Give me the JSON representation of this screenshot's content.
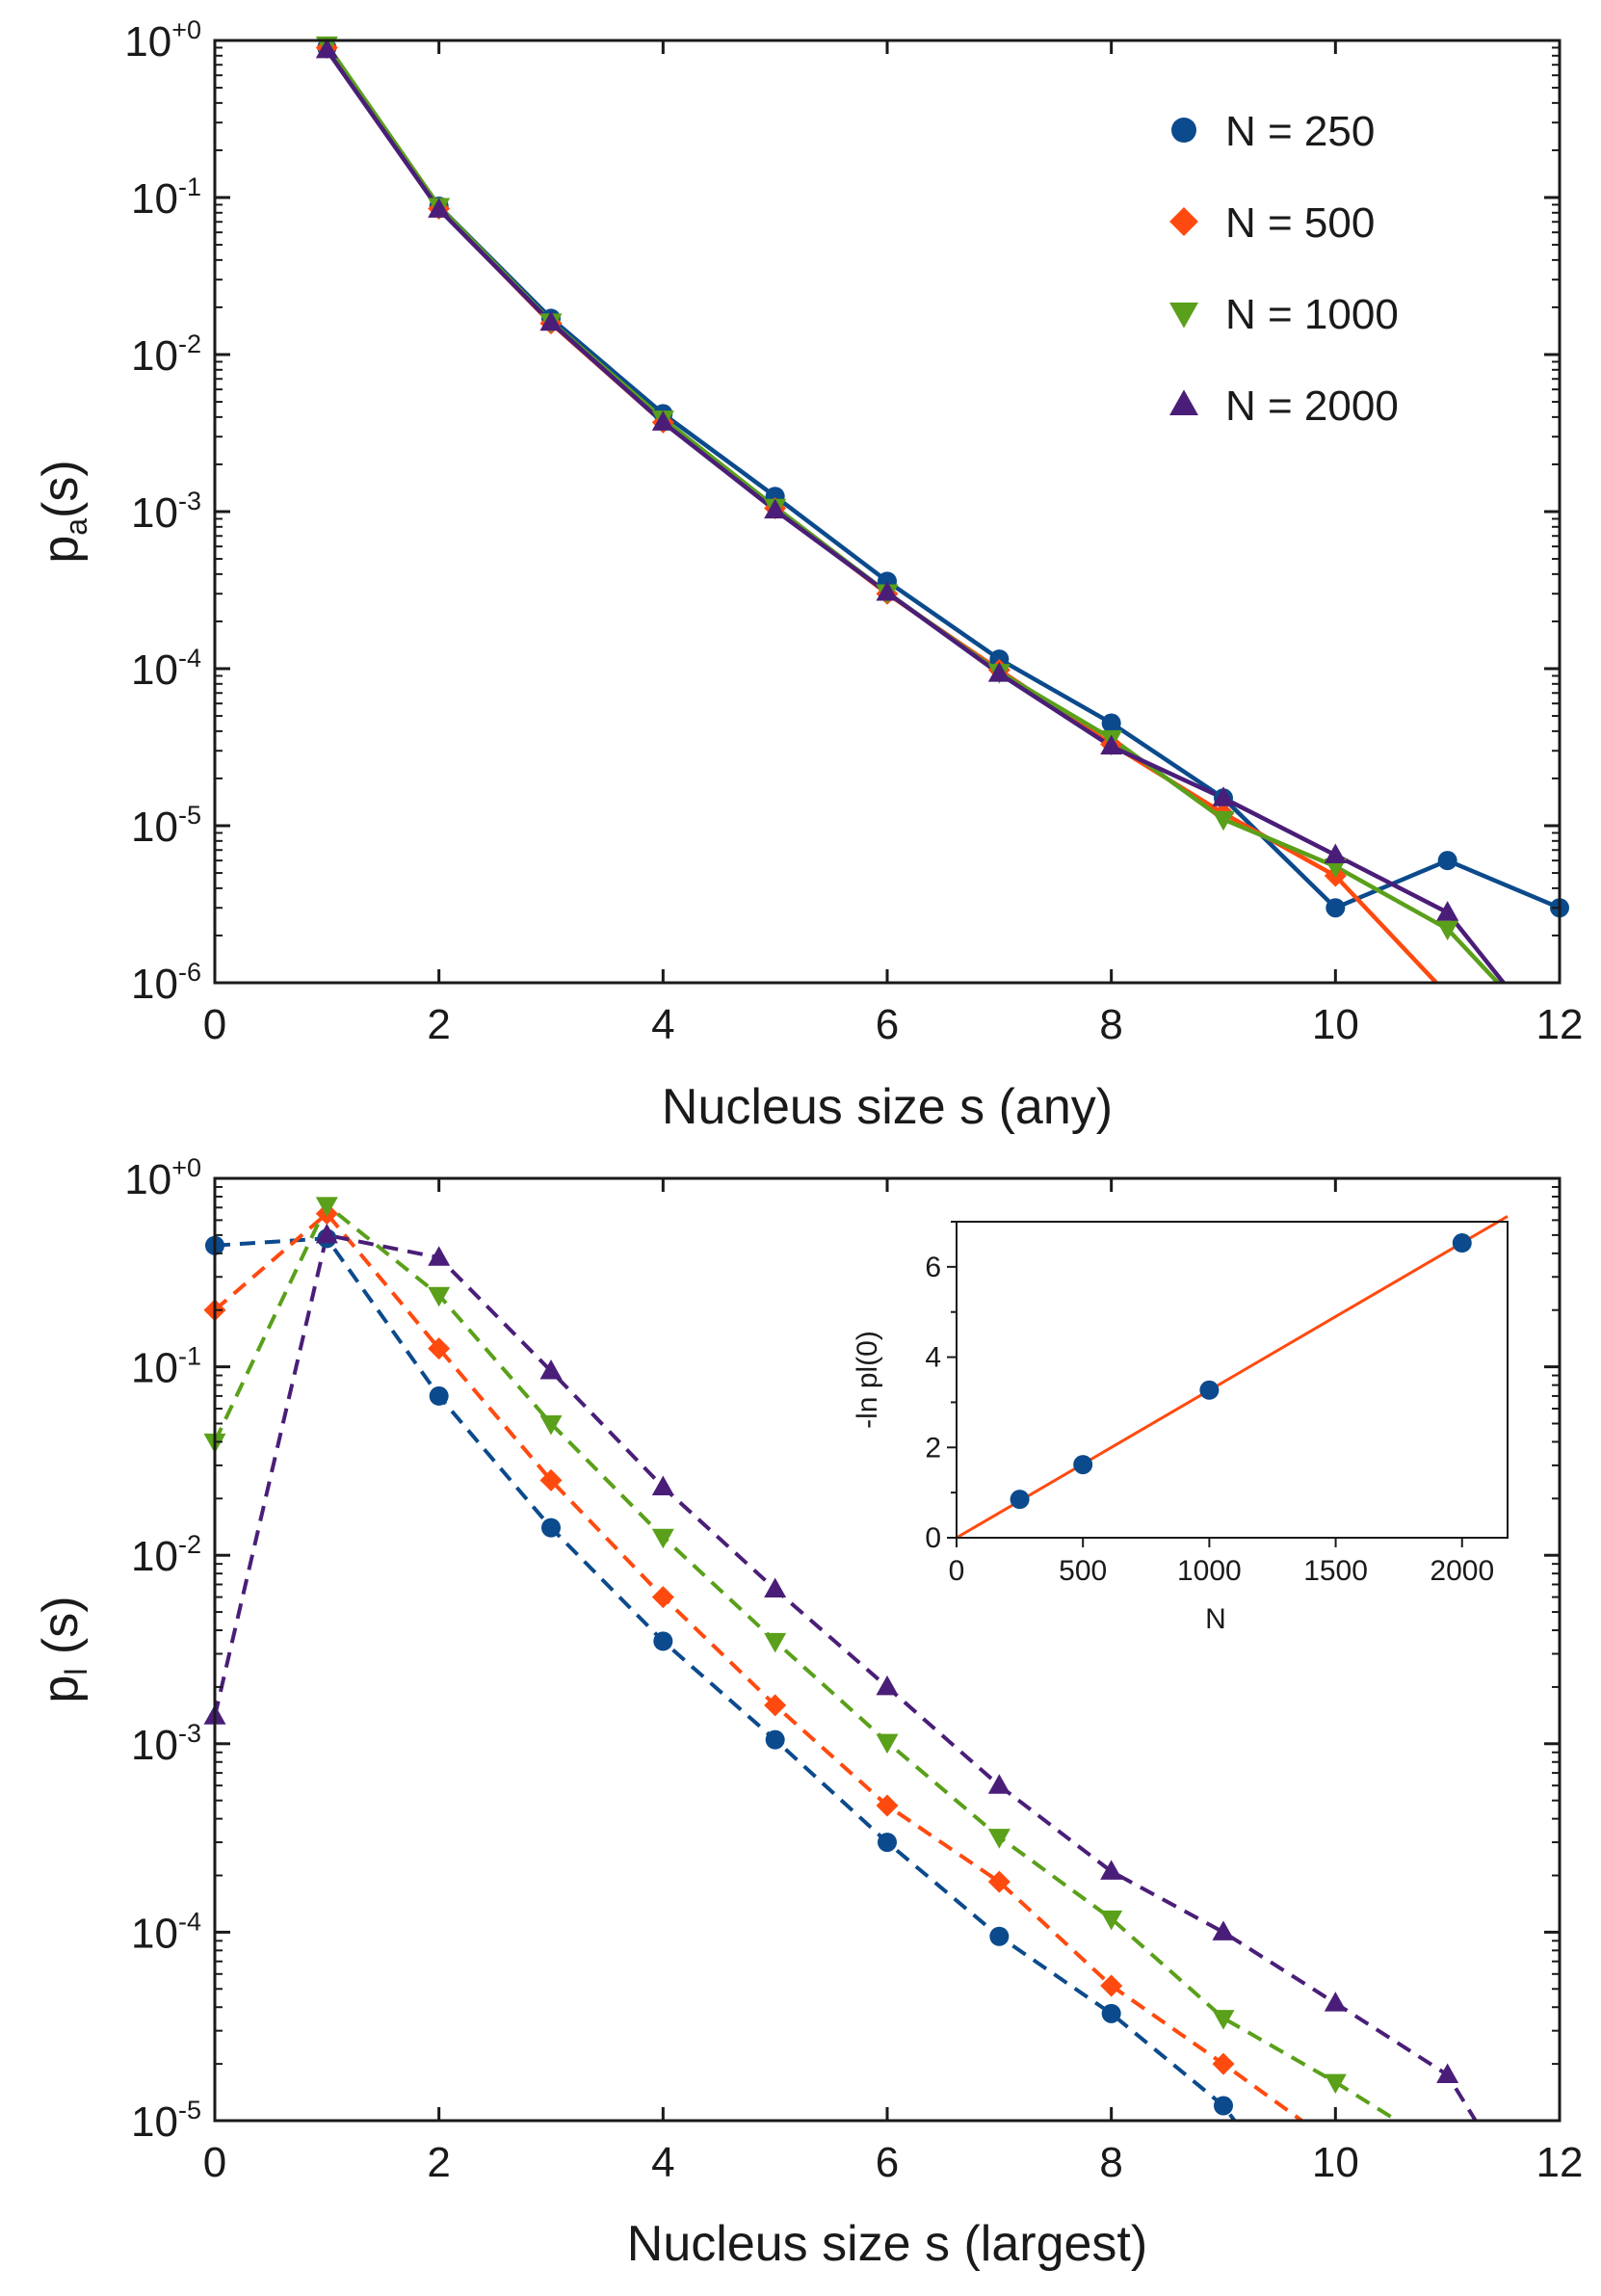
{
  "colors": {
    "N250": "#0b4a8c",
    "N500": "#ff4a0f",
    "N1000": "#5aa01a",
    "N2000": "#4a1e78",
    "axis": "#1a1a1a",
    "fit": "#ff4a0f"
  },
  "chart_data": [
    {
      "id": "top",
      "type": "line",
      "yscale": "log",
      "title": "",
      "xlabel": "Nucleus size  s (any)",
      "ylabel": "p",
      "ylabel_sub": "a",
      "ylabel_suffix": "(s)",
      "xlim": [
        0,
        12
      ],
      "ylim_exp": [
        -6,
        0
      ],
      "xticks": [
        0,
        2,
        4,
        6,
        8,
        10,
        12
      ],
      "yticks": [
        {
          "base": "10",
          "exp": "+0"
        },
        {
          "base": "10",
          "exp": "-1"
        },
        {
          "base": "10",
          "exp": "-2"
        },
        {
          "base": "10",
          "exp": "-3"
        },
        {
          "base": "10",
          "exp": "-4"
        },
        {
          "base": "10",
          "exp": "-5"
        },
        {
          "base": "10",
          "exp": "-6"
        }
      ],
      "line_style": "solid",
      "legend": {
        "placement": "top-right",
        "entries": [
          "N = 250",
          "N = 500",
          "N = 1000",
          "N = 2000"
        ]
      },
      "series": [
        {
          "name": "N = 250",
          "marker": "circle",
          "color_key": "N250",
          "x": [
            1,
            2,
            3,
            4,
            5,
            6,
            7,
            8,
            9,
            10,
            11,
            12
          ],
          "y": [
            0.9,
            0.088,
            0.017,
            0.0042,
            0.00125,
            0.00036,
            0.000115,
            4.5e-05,
            1.5e-05,
            3e-06,
            6e-06,
            3e-06
          ],
          "tail": null
        },
        {
          "name": "N = 500",
          "marker": "diamond",
          "color_key": "N500",
          "x": [
            1,
            2,
            3,
            4,
            5,
            6,
            7,
            8,
            9,
            10
          ],
          "y": [
            0.9,
            0.085,
            0.0158,
            0.0037,
            0.00105,
            0.0003,
            9.8e-05,
            3.3e-05,
            1.2e-05,
            4.8e-06
          ],
          "tail": [
            10.9,
            1e-06
          ]
        },
        {
          "name": "N = 1000",
          "marker": "triangle-down",
          "color_key": "N1000",
          "x": [
            1,
            2,
            3,
            4,
            5,
            6,
            7,
            8,
            9,
            10,
            11
          ],
          "y": [
            0.94,
            0.088,
            0.0162,
            0.0039,
            0.00107,
            0.000305,
            9.5e-05,
            3.6e-05,
            1.1e-05,
            5.5e-06,
            2.2e-06
          ],
          "tail": [
            11.45,
            1e-06
          ]
        },
        {
          "name": "N = 2000",
          "marker": "triangle-up",
          "color_key": "N2000",
          "x": [
            1,
            2,
            3,
            4,
            5,
            6,
            7,
            8,
            9,
            10,
            11
          ],
          "y": [
            0.87,
            0.084,
            0.016,
            0.0037,
            0.00102,
            0.000305,
            9.3e-05,
            3.2e-05,
            1.5e-05,
            6.5e-06,
            2.8e-06
          ],
          "tail": [
            11.5,
            1e-06
          ]
        }
      ]
    },
    {
      "id": "bottom",
      "type": "line",
      "yscale": "log",
      "title": "",
      "xlabel": "Nucleus size  s  (largest)",
      "ylabel": "p",
      "ylabel_sub": "l",
      "ylabel_suffix": " (s)",
      "xlim": [
        0,
        12
      ],
      "ylim_exp": [
        -5,
        0
      ],
      "xticks": [
        0,
        2,
        4,
        6,
        8,
        10,
        12
      ],
      "yticks": [
        {
          "base": "10",
          "exp": "+0"
        },
        {
          "base": "10",
          "exp": "-1"
        },
        {
          "base": "10",
          "exp": "-2"
        },
        {
          "base": "10",
          "exp": "-3"
        },
        {
          "base": "10",
          "exp": "-4"
        },
        {
          "base": "10",
          "exp": "-5"
        }
      ],
      "line_style": "dashed",
      "series": [
        {
          "name": "N = 250",
          "marker": "circle",
          "color_key": "N250",
          "x": [
            0,
            1,
            2,
            3,
            4,
            5,
            6,
            7,
            8,
            9
          ],
          "y": [
            0.44,
            0.48,
            0.07,
            0.014,
            0.0035,
            0.00105,
            0.0003,
            9.5e-05,
            3.7e-05,
            1.2e-05
          ],
          "tail": [
            9.1,
            1e-05
          ]
        },
        {
          "name": "N = 500",
          "marker": "diamond",
          "color_key": "N500",
          "x": [
            0,
            1,
            2,
            3,
            4,
            5,
            6,
            7,
            8,
            9
          ],
          "y": [
            0.2,
            0.65,
            0.125,
            0.025,
            0.006,
            0.0016,
            0.00047,
            0.000185,
            5.2e-05,
            2e-05
          ],
          "tail": [
            9.7,
            1e-05
          ]
        },
        {
          "name": "N = 1000",
          "marker": "triangle-down",
          "color_key": "N1000",
          "x": [
            0,
            1,
            2,
            3,
            4,
            5,
            6,
            7,
            8,
            9,
            10
          ],
          "y": [
            0.04,
            0.72,
            0.24,
            0.05,
            0.0125,
            0.0035,
            0.00102,
            0.00032,
            0.000118,
            3.5e-05,
            1.6e-05
          ],
          "tail": [
            10.55,
            1e-05
          ]
        },
        {
          "name": "N = 2000",
          "marker": "triangle-up",
          "color_key": "N2000",
          "x": [
            0,
            1,
            2,
            3,
            4,
            5,
            6,
            7,
            8,
            9,
            10,
            11
          ],
          "y": [
            0.0014,
            0.5,
            0.38,
            0.095,
            0.023,
            0.0066,
            0.002,
            0.0006,
            0.00021,
            0.0001,
            4.2e-05,
            1.75e-05
          ],
          "tail": [
            11.25,
            1e-05
          ]
        }
      ]
    },
    {
      "id": "inset",
      "type": "scatter",
      "title": "",
      "xlabel": "N",
      "ylabel": "-ln pl(0)",
      "xlim": [
        0,
        2180
      ],
      "ylim": [
        0,
        7
      ],
      "xticks": [
        0,
        500,
        1000,
        1500,
        2000
      ],
      "yticks": [
        0,
        2,
        4,
        6
      ],
      "x": [
        250,
        500,
        1000,
        2000
      ],
      "y": [
        0.85,
        1.62,
        3.27,
        6.53
      ],
      "fit_line": {
        "x": [
          0,
          2180
        ],
        "y": [
          0,
          7.12
        ]
      }
    }
  ]
}
